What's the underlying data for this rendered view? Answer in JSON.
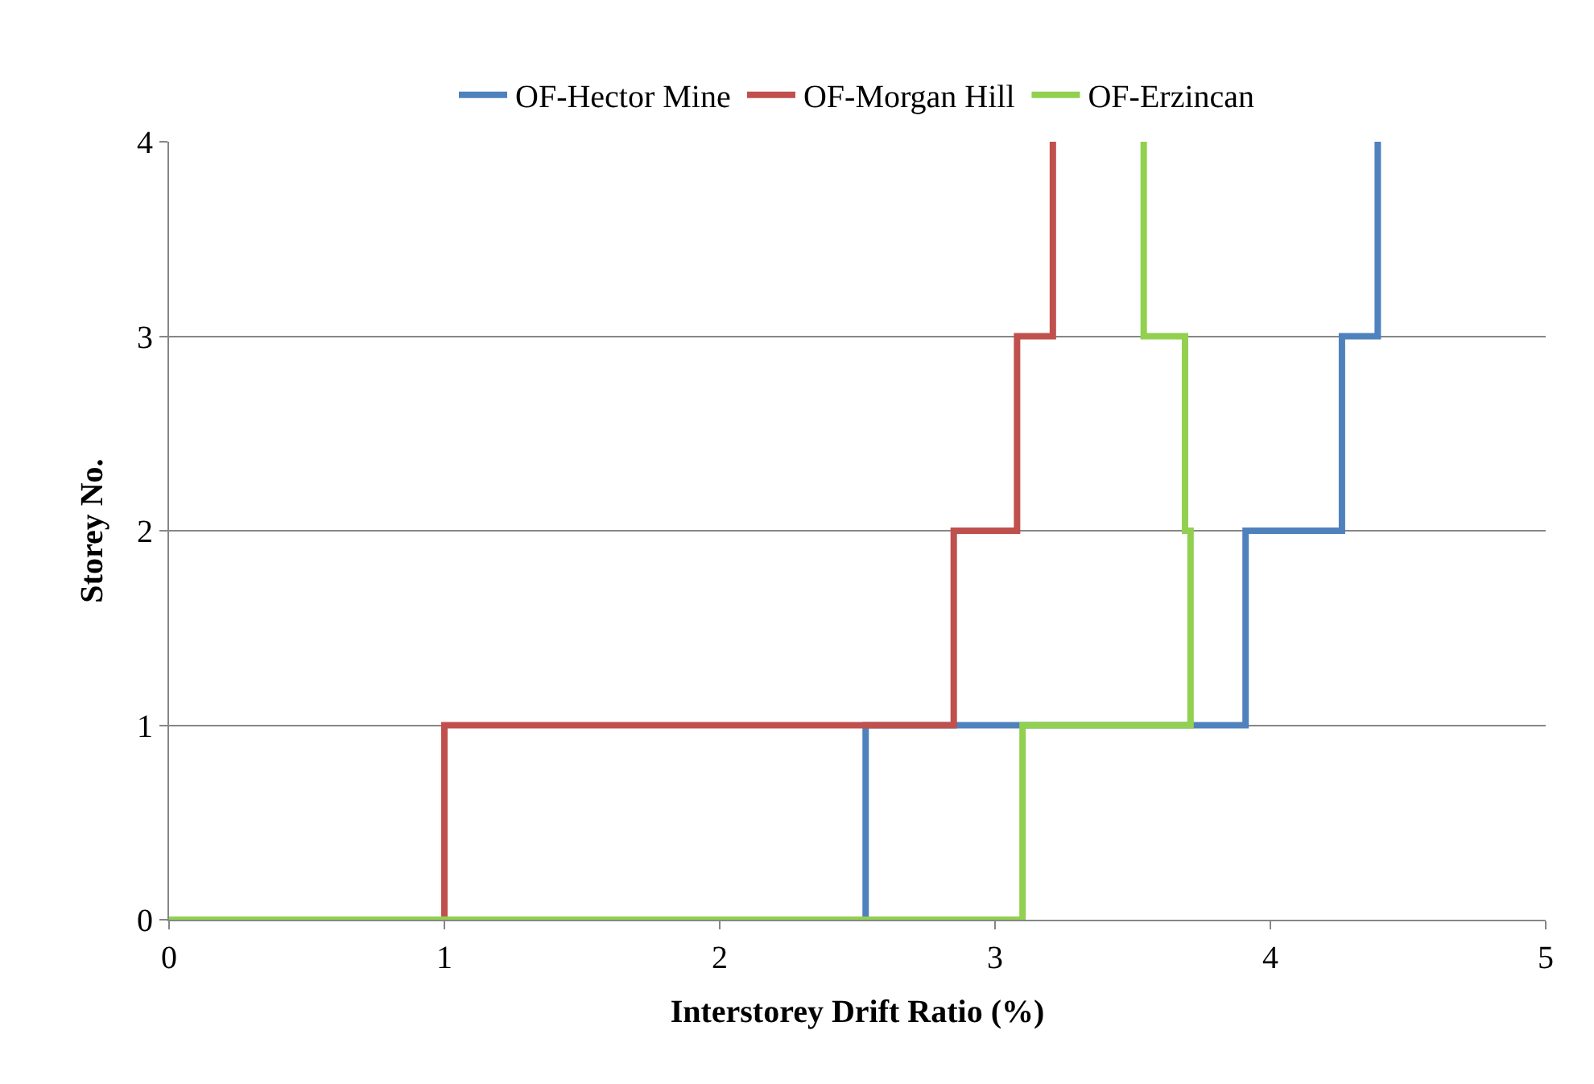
{
  "chart_data": {
    "type": "step",
    "xlabel": "Interstorey Drift Ratio (%)",
    "ylabel": "Storey No.",
    "series": [
      {
        "name": "OF-Hector Mine",
        "color": "#4f81bd",
        "x": [
          0,
          2.53,
          3.91,
          4.26,
          4.39
        ],
        "values": [
          0,
          1,
          2,
          3,
          4
        ]
      },
      {
        "name": "OF-Morgan Hill",
        "color": "#c0504d",
        "x": [
          0,
          1.0,
          2.85,
          3.08,
          3.21
        ],
        "values": [
          0,
          1,
          2,
          3,
          4
        ]
      },
      {
        "name": "OF-Erzincan",
        "color": "#92d050",
        "x": [
          0,
          3.1,
          3.71,
          3.69,
          3.54
        ],
        "values": [
          0,
          1,
          2,
          3,
          4
        ]
      }
    ],
    "xlim": [
      0,
      5
    ],
    "xticks": [
      0,
      1,
      2,
      3,
      4,
      5
    ],
    "ylim": [
      0,
      4
    ],
    "yticks": [
      0,
      1,
      2,
      3,
      4
    ],
    "grid": "y",
    "legend": "top",
    "marker": "none",
    "line_style": "solid"
  }
}
